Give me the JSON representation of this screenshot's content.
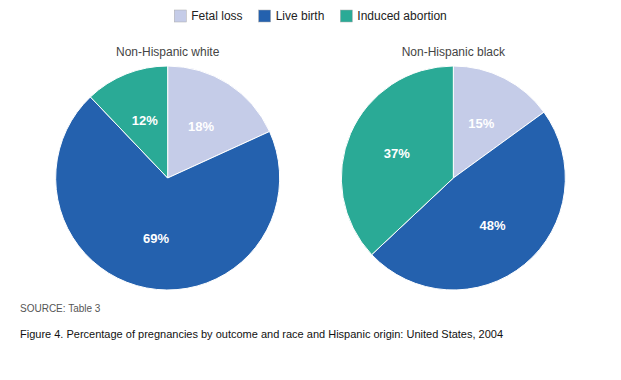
{
  "chart_data": [
    {
      "type": "pie",
      "title": "Non-Hispanic white",
      "categories": [
        "Fetal loss",
        "Live birth",
        "Induced abortion"
      ],
      "values": [
        18,
        69,
        12
      ],
      "value_labels": [
        "18%",
        "69%",
        "12%"
      ],
      "colors": [
        "#c5cce8",
        "#2461ae",
        "#2aaa96"
      ],
      "data_labels": true,
      "legend": "top",
      "annotations": [
        "SOURCE: Table 3",
        "Figure 4. Percentage of pregnancies by outcome and race and Hispanic origin: United States, 2004"
      ]
    },
    {
      "type": "pie",
      "title": "Non-Hispanic black",
      "categories": [
        "Fetal loss",
        "Live birth",
        "Induced abortion"
      ],
      "values": [
        15,
        48,
        37
      ],
      "value_labels": [
        "15%",
        "48%",
        "37%"
      ],
      "colors": [
        "#c5cce8",
        "#2461ae",
        "#2aaa96"
      ],
      "data_labels": true
    }
  ]
}
